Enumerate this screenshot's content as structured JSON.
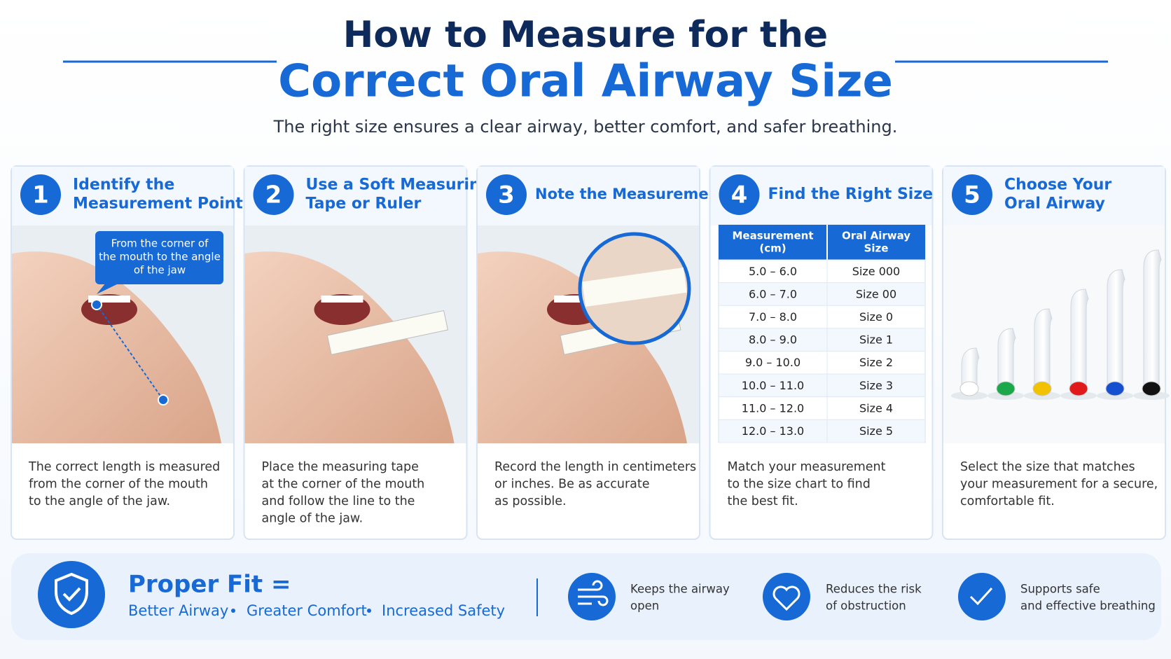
{
  "header": {
    "title_line1": "How to Measure for the",
    "title_line2": "Correct Oral Airway Size",
    "subtitle": "The right size ensures a clear airway, better comfort, and safer breathing."
  },
  "steps": [
    {
      "number": "1",
      "title_lines": [
        "Identify the",
        "Measurement Point"
      ],
      "caption_lines": [
        "The correct length is measured",
        "from the corner of the mouth",
        "to the angle of the jaw."
      ],
      "callout_lines": [
        "From the corner of",
        "the mouth to the angle",
        "of the jaw"
      ]
    },
    {
      "number": "2",
      "title_lines": [
        "Use a Soft Measuring",
        "Tape or Ruler"
      ],
      "caption_lines": [
        "Place the measuring tape",
        "at the corner of the mouth",
        "and follow the line to the",
        "angle of the jaw."
      ]
    },
    {
      "number": "3",
      "title_lines": [
        "Note the Measurement"
      ],
      "caption_lines": [
        "Record the length in centimeters",
        "or inches. Be as accurate",
        "as possible."
      ]
    },
    {
      "number": "4",
      "title_lines": [
        "Find the Right Size"
      ],
      "caption_lines": [
        "Match your measurement",
        "to the size chart to find",
        "the best fit."
      ]
    },
    {
      "number": "5",
      "title_lines": [
        "Choose Your",
        "Oral Airway"
      ],
      "caption_lines": [
        "Select the size that matches",
        "your measurement for a secure,",
        "comfortable fit."
      ]
    }
  ],
  "table": {
    "header_lines": [
      [
        "Measurement",
        "(cm)"
      ],
      [
        "Oral Airway",
        "Size"
      ]
    ],
    "rows": [
      [
        "5.0 – 6.0",
        "Size 000"
      ],
      [
        "6.0 – 7.0",
        "Size 00"
      ],
      [
        "7.0 – 8.0",
        "Size 0"
      ],
      [
        "8.0 – 9.0",
        "Size 1"
      ],
      [
        "9.0 – 10.0",
        "Size 2"
      ],
      [
        "10.0 – 11.0",
        "Size 3"
      ],
      [
        "11.0 – 12.0",
        "Size 4"
      ],
      [
        "12.0 – 13.0",
        "Size 5"
      ]
    ]
  },
  "footer": {
    "title": "Proper Fit =",
    "benefits": [
      "Better Airway",
      "Greater Comfort",
      "Increased Safety"
    ],
    "features": [
      [
        "Keeps the airway",
        "open"
      ],
      [
        "Reduces the risk",
        "of obstruction"
      ],
      [
        "Supports safe",
        "and effective breathing"
      ]
    ]
  }
}
